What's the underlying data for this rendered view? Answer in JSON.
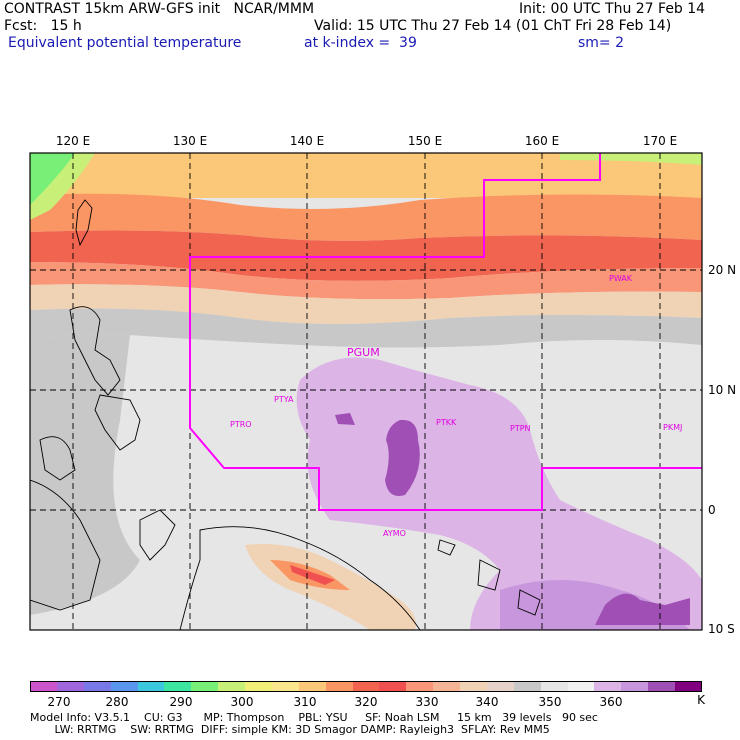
{
  "header": {
    "line1_left": "CONTRAST 15km ARW-GFS init   NCAR/MMM",
    "line1_right": "Init: 00 UTC Thu 27 Feb 14",
    "line2_left": "Fcst:   15 h",
    "line2_right": "Valid: 15 UTC Thu 27 Feb 14 (01 ChT Fri 28 Feb 14)",
    "line3_field": "Equivalent potential temperature",
    "line3_level": "at k-index =  39",
    "line3_smooth": "sm= 2"
  },
  "map": {
    "lon_labels": [
      "120 E",
      "130 E",
      "140 E",
      "150 E",
      "160 E",
      "170 E"
    ],
    "lat_labels": [
      "20 N",
      "10 N",
      "0",
      "10 S"
    ],
    "stations": [
      "PGUM",
      "PTYA",
      "PTRO",
      "PTKK",
      "PTPN",
      "PKMJ",
      "PWAK",
      "AYMO"
    ],
    "domain_line_color": "#ff00ff",
    "station_color": "#e000e0"
  },
  "colorbar": {
    "unit": "K",
    "tick_labels": [
      "270",
      "280",
      "290",
      "300",
      "310",
      "320",
      "330",
      "340",
      "350",
      "360"
    ],
    "colors": [
      "#cc55cc",
      "#a066dd",
      "#7878e6",
      "#5a96ee",
      "#3cc8dc",
      "#3ce6a0",
      "#78f078",
      "#c8f078",
      "#f0f078",
      "#fae68c",
      "#fac878",
      "#fa9664",
      "#f06450",
      "#f05050",
      "#fa9678",
      "#f5b496",
      "#f0d2b4",
      "#e6d2c8",
      "#c8c8c8",
      "#e6e6e6",
      "#f0f0f0",
      "#dcb4e6",
      "#c896dc",
      "#a050b4",
      "#800080"
    ]
  },
  "footer": {
    "line1": "Model Info: V3.5.1    CU: G3      MP: Thompson    PBL: YSU     SF: Noah LSM     15 km   39 levels   90 sec",
    "line2": "       LW: RRTMG    SW: RRTMG  DIFF: simple KM: 3D Smagor DAMP: Rayleigh3  SFLAY: Rev MM5"
  }
}
